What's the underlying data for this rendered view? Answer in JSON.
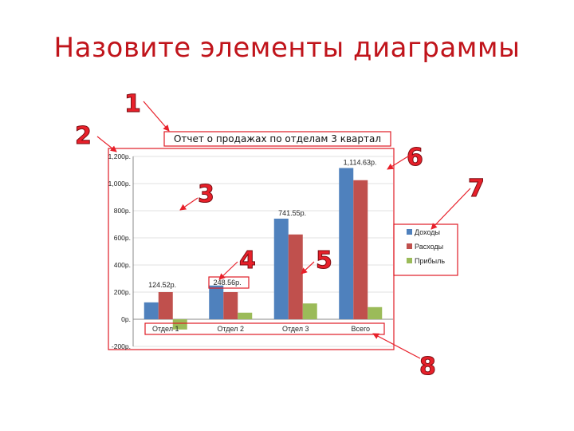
{
  "slide": {
    "title": "Назовите элементы диаграммы",
    "markers": [
      "1",
      "2",
      "3",
      "4",
      "5",
      "6",
      "7",
      "8"
    ]
  },
  "colors": {
    "title": "#c0141b",
    "marker": "#e8202a",
    "highlight_box": "#e01b24",
    "series": [
      "#4f81bd",
      "#c0504d",
      "#9bbb59"
    ]
  },
  "chart_data": {
    "type": "bar",
    "title": "Отчет о продажах по отделам 3 квартал",
    "categories": [
      "Отдел 1",
      "Отдел 2",
      "Отдел 3",
      "Всего"
    ],
    "series": [
      {
        "name": "Доходы",
        "values": [
          124.52,
          248.56,
          741.55,
          1114.63
        ]
      },
      {
        "name": "Расходы",
        "values": [
          200,
          200,
          625,
          1025
        ]
      },
      {
        "name": "Прибыль",
        "values": [
          -75.48,
          48.56,
          116.55,
          89.63
        ]
      }
    ],
    "data_labels": [
      "124.52р.",
      "248.56р.",
      "741.55р.",
      "1,114.63р."
    ],
    "y_ticks": [
      -200,
      0,
      200,
      400,
      600,
      800,
      1000,
      1200
    ],
    "y_tick_labels": [
      "-200р.",
      "0р.",
      "200р.",
      "400р.",
      "600р.",
      "800р.",
      "1,000р.",
      "1,200р."
    ],
    "ylim": [
      -200,
      1200
    ],
    "grid": true,
    "legend_position": "right"
  }
}
